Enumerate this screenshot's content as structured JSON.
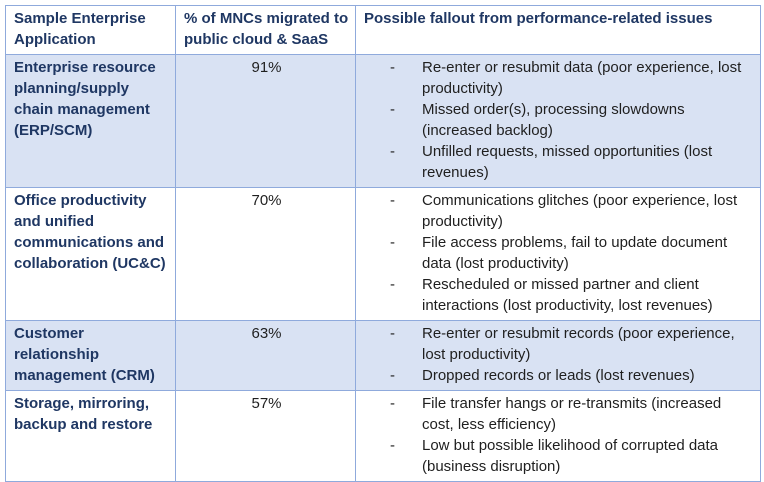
{
  "headers": {
    "app": "Sample Enterprise Application",
    "pct": "% of MNCs migrated to public cloud & SaaS",
    "fallout": "Possible fallout from performance-related issues"
  },
  "bullet": "-",
  "rows": [
    {
      "app": "Enterprise resource planning/supply chain management (ERP/SCM)",
      "pct": "91%",
      "fallout": [
        "Re-enter or resubmit data (poor experience, lost productivity)",
        "Missed order(s), processing slowdowns (increased backlog)",
        "Unfilled requests, missed opportunities (lost revenues)"
      ]
    },
    {
      "app": "Office productivity and unified communications and collaboration (UC&C)",
      "pct": "70%",
      "fallout": [
        "Communications glitches (poor experience, lost productivity)",
        "File access problems, fail to update document data (lost productivity)",
        "Rescheduled or missed partner and client interactions (lost productivity, lost revenues)"
      ]
    },
    {
      "app": "Customer relationship management (CRM)",
      "pct": "63%",
      "fallout": [
        "Re-enter or resubmit records (poor experience, lost productivity)",
        "Dropped records or leads (lost revenues)"
      ]
    },
    {
      "app": "Storage, mirroring, backup and restore",
      "pct": "57%",
      "fallout": [
        "File transfer hangs or re-transmits (increased cost, less efficiency)",
        "Low but possible likelihood of corrupted data (business disruption)"
      ]
    }
  ]
}
